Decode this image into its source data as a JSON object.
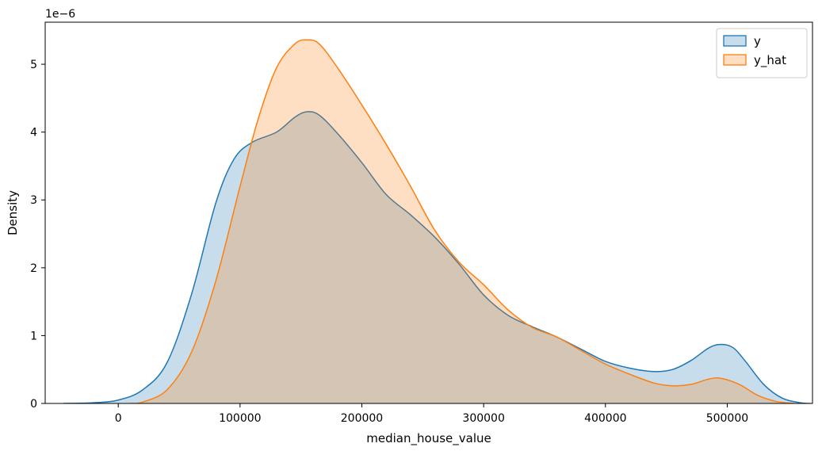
{
  "chart_data": {
    "type": "area",
    "title": "",
    "xlabel": "median_house_value",
    "ylabel": "Density",
    "y_scale_note": "1e−6",
    "xlim": [
      -60000,
      570000
    ],
    "ylim": [
      0,
      5.62
    ],
    "x_ticks": [
      0,
      100000,
      200000,
      300000,
      400000,
      500000
    ],
    "x_tick_labels": [
      "0",
      "100000",
      "200000",
      "300000",
      "400000",
      "500000"
    ],
    "y_ticks": [
      0,
      1,
      2,
      3,
      4,
      5
    ],
    "y_tick_labels": [
      "0",
      "1",
      "2",
      "3",
      "4",
      "5"
    ],
    "grid": false,
    "legend_position": "top-right",
    "series": [
      {
        "name": "y",
        "color": "#1f77b4",
        "fill": "rgba(31,119,180,0.25)",
        "points": [
          [
            -45000,
            0.0
          ],
          [
            -20000,
            0.01
          ],
          [
            0,
            0.05
          ],
          [
            20000,
            0.2
          ],
          [
            40000,
            0.6
          ],
          [
            60000,
            1.6
          ],
          [
            80000,
            2.95
          ],
          [
            95000,
            3.6
          ],
          [
            110000,
            3.85
          ],
          [
            130000,
            4.0
          ],
          [
            145000,
            4.22
          ],
          [
            155000,
            4.3
          ],
          [
            165000,
            4.25
          ],
          [
            180000,
            3.98
          ],
          [
            200000,
            3.55
          ],
          [
            220000,
            3.08
          ],
          [
            240000,
            2.78
          ],
          [
            260000,
            2.45
          ],
          [
            280000,
            2.05
          ],
          [
            300000,
            1.6
          ],
          [
            320000,
            1.3
          ],
          [
            340000,
            1.13
          ],
          [
            360000,
            0.98
          ],
          [
            380000,
            0.8
          ],
          [
            400000,
            0.62
          ],
          [
            420000,
            0.52
          ],
          [
            440000,
            0.47
          ],
          [
            455000,
            0.5
          ],
          [
            470000,
            0.63
          ],
          [
            485000,
            0.82
          ],
          [
            495000,
            0.87
          ],
          [
            505000,
            0.82
          ],
          [
            515000,
            0.62
          ],
          [
            530000,
            0.28
          ],
          [
            545000,
            0.08
          ],
          [
            560000,
            0.01
          ],
          [
            568000,
            0.0
          ]
        ]
      },
      {
        "name": "y_hat",
        "color": "#ff7f0e",
        "fill": "rgba(255,127,14,0.25)",
        "points": [
          [
            10000,
            0.0
          ],
          [
            20000,
            0.02
          ],
          [
            40000,
            0.2
          ],
          [
            60000,
            0.75
          ],
          [
            80000,
            1.8
          ],
          [
            100000,
            3.2
          ],
          [
            115000,
            4.2
          ],
          [
            130000,
            4.95
          ],
          [
            145000,
            5.3
          ],
          [
            155000,
            5.36
          ],
          [
            165000,
            5.3
          ],
          [
            180000,
            4.95
          ],
          [
            200000,
            4.4
          ],
          [
            220000,
            3.82
          ],
          [
            240000,
            3.2
          ],
          [
            260000,
            2.55
          ],
          [
            280000,
            2.08
          ],
          [
            300000,
            1.75
          ],
          [
            320000,
            1.38
          ],
          [
            340000,
            1.12
          ],
          [
            360000,
            0.98
          ],
          [
            380000,
            0.78
          ],
          [
            400000,
            0.58
          ],
          [
            420000,
            0.43
          ],
          [
            440000,
            0.3
          ],
          [
            455000,
            0.26
          ],
          [
            470000,
            0.28
          ],
          [
            485000,
            0.36
          ],
          [
            495000,
            0.37
          ],
          [
            510000,
            0.28
          ],
          [
            525000,
            0.12
          ],
          [
            540000,
            0.03
          ],
          [
            555000,
            0.0
          ]
        ]
      }
    ]
  }
}
